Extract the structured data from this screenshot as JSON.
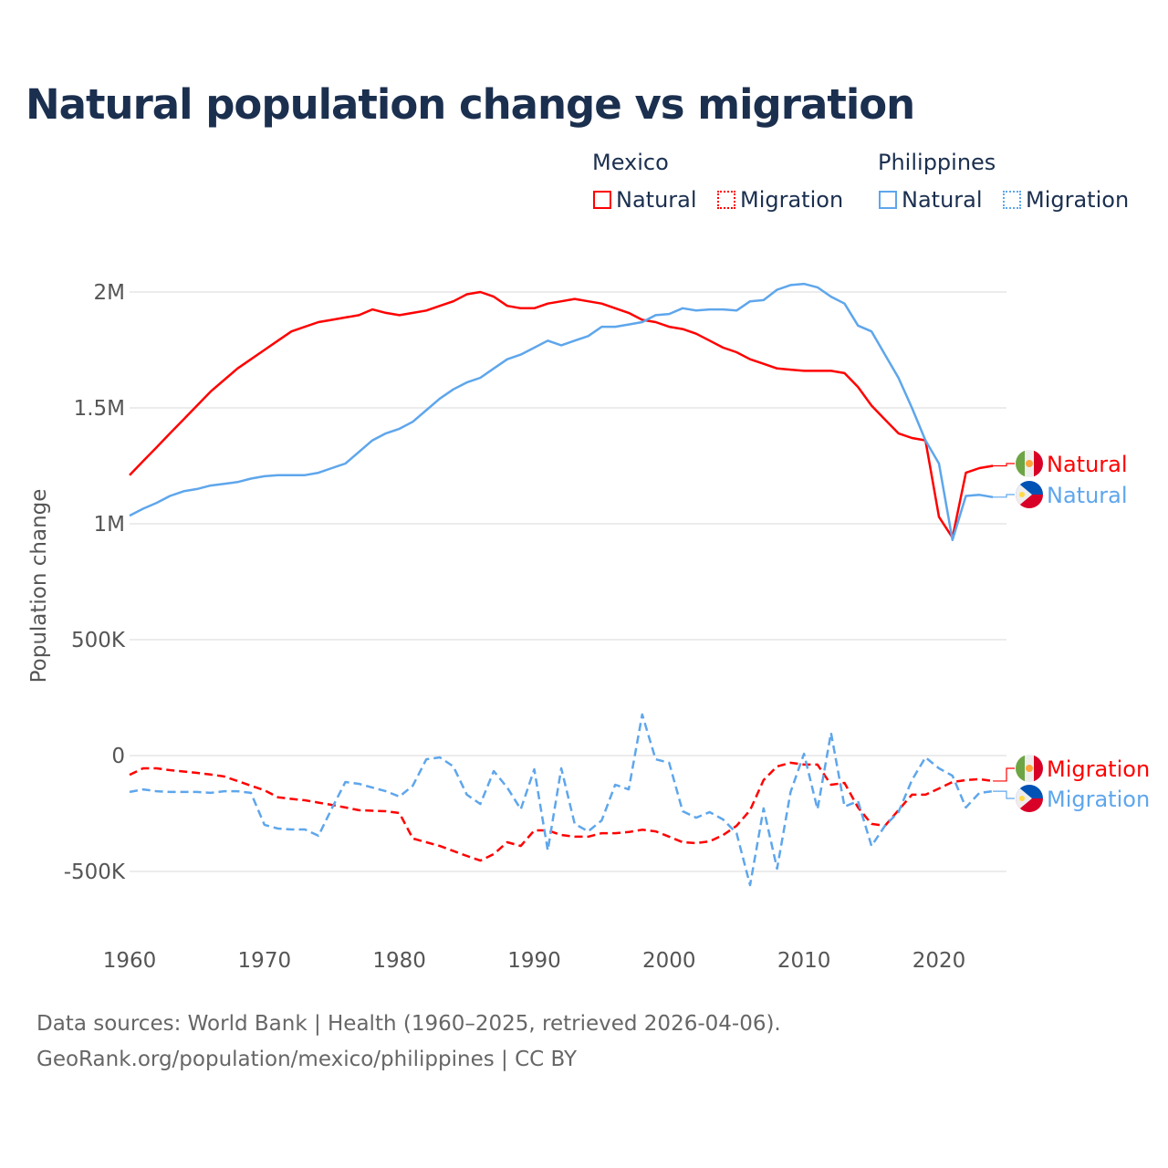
{
  "chart_data": {
    "type": "line",
    "title": "Natural population change vs migration",
    "ylabel": "Population change",
    "xlabel": "",
    "xlim": [
      1960,
      2025
    ],
    "ylim": [
      -650000,
      2100000
    ],
    "x_ticks": [
      1960,
      1970,
      1980,
      1990,
      2000,
      2010,
      2020
    ],
    "x_tick_labels": [
      "1960",
      "1970",
      "1980",
      "1990",
      "2000",
      "2010",
      "2020"
    ],
    "y_ticks": [
      -500000,
      0,
      500000,
      1000000,
      1500000,
      2000000
    ],
    "y_tick_labels": [
      "-500K",
      "0",
      "500K",
      "1M",
      "1.5M",
      "2M"
    ],
    "grid": true,
    "legend": {
      "placement": "top-right",
      "groups": [
        {
          "name": "Mexico",
          "items": [
            "Natural",
            "Migration"
          ]
        },
        {
          "name": "Philippines",
          "items": [
            "Natural",
            "Migration"
          ]
        }
      ]
    },
    "x": [
      1960,
      1961,
      1962,
      1963,
      1964,
      1965,
      1966,
      1967,
      1968,
      1969,
      1970,
      1971,
      1972,
      1973,
      1974,
      1975,
      1976,
      1977,
      1978,
      1979,
      1980,
      1981,
      1982,
      1983,
      1984,
      1985,
      1986,
      1987,
      1988,
      1989,
      1990,
      1991,
      1992,
      1993,
      1994,
      1995,
      1996,
      1997,
      1998,
      1999,
      2000,
      2001,
      2002,
      2003,
      2004,
      2005,
      2006,
      2007,
      2008,
      2009,
      2010,
      2011,
      2012,
      2013,
      2014,
      2015,
      2016,
      2017,
      2018,
      2019,
      2020,
      2021,
      2022,
      2023,
      2024
    ],
    "series": [
      {
        "name": "Mexico Natural",
        "country": "Mexico",
        "kind": "Natural",
        "label": "Natural",
        "color": "#ff0000",
        "dash": false,
        "values": [
          1210000,
          1270000,
          1330000,
          1390000,
          1450000,
          1510000,
          1570000,
          1620000,
          1670000,
          1710000,
          1750000,
          1790000,
          1830000,
          1850000,
          1870000,
          1880000,
          1890000,
          1900000,
          1925000,
          1910000,
          1900000,
          1910000,
          1920000,
          1940000,
          1960000,
          1990000,
          2000000,
          1980000,
          1940000,
          1930000,
          1930000,
          1950000,
          1960000,
          1970000,
          1960000,
          1950000,
          1930000,
          1910000,
          1880000,
          1870000,
          1850000,
          1840000,
          1820000,
          1790000,
          1760000,
          1740000,
          1710000,
          1690000,
          1670000,
          1665000,
          1660000,
          1660000,
          1660000,
          1650000,
          1590000,
          1510000,
          1450000,
          1390000,
          1370000,
          1360000,
          1030000,
          940000,
          1220000,
          1240000,
          1250000
        ]
      },
      {
        "name": "Philippines Natural",
        "country": "Philippines",
        "kind": "Natural",
        "label": "Natural",
        "color": "#5ea6ec",
        "dash": false,
        "values": [
          1035000,
          1065000,
          1090000,
          1120000,
          1140000,
          1150000,
          1165000,
          1172000,
          1180000,
          1195000,
          1205000,
          1210000,
          1210000,
          1210000,
          1220000,
          1240000,
          1260000,
          1310000,
          1360000,
          1390000,
          1410000,
          1440000,
          1490000,
          1540000,
          1580000,
          1610000,
          1630000,
          1670000,
          1710000,
          1730000,
          1760000,
          1790000,
          1770000,
          1790000,
          1810000,
          1850000,
          1850000,
          1860000,
          1870000,
          1900000,
          1905000,
          1930000,
          1920000,
          1925000,
          1925000,
          1920000,
          1960000,
          1965000,
          2010000,
          2030000,
          2035000,
          2020000,
          1980000,
          1950000,
          1855000,
          1830000,
          1730000,
          1630000,
          1500000,
          1360000,
          1260000,
          930000,
          1120000,
          1125000,
          1115000
        ]
      },
      {
        "name": "Mexico Migration",
        "country": "Mexico",
        "kind": "Migration",
        "label": "Migration",
        "color": "#ff0000",
        "dash": true,
        "values": [
          -83000,
          -55000,
          -55000,
          -63000,
          -69000,
          -75000,
          -82000,
          -90000,
          -110000,
          -130000,
          -150000,
          -180000,
          -187000,
          -193000,
          -203000,
          -213000,
          -224000,
          -236000,
          -238000,
          -240000,
          -248000,
          -358000,
          -374000,
          -390000,
          -412000,
          -433000,
          -453000,
          -425000,
          -374000,
          -390000,
          -323000,
          -323000,
          -343000,
          -350000,
          -350000,
          -335000,
          -335000,
          -330000,
          -320000,
          -327000,
          -350000,
          -374000,
          -378000,
          -370000,
          -343000,
          -303000,
          -236000,
          -106000,
          -47000,
          -31000,
          -39000,
          -39000,
          -126000,
          -118000,
          -224000,
          -295000,
          -303000,
          -236000,
          -169000,
          -169000,
          -142000,
          -114000,
          -106000,
          -102000,
          -110000
        ]
      },
      {
        "name": "Philippines Migration",
        "country": "Philippines",
        "kind": "Migration",
        "label": "Migration",
        "color": "#5ea6ec",
        "dash": true,
        "values": [
          -157000,
          -146000,
          -154000,
          -157000,
          -157000,
          -157000,
          -161000,
          -154000,
          -154000,
          -161000,
          -299000,
          -315000,
          -319000,
          -319000,
          -346000,
          -228000,
          -114000,
          -122000,
          -138000,
          -154000,
          -177000,
          -130000,
          -16000,
          -8000,
          -47000,
          -169000,
          -209000,
          -67000,
          -138000,
          -232000,
          -59000,
          -409000,
          -55000,
          -295000,
          -327000,
          -280000,
          -126000,
          -146000,
          177000,
          -16000,
          -31000,
          -240000,
          -268000,
          -244000,
          -276000,
          -335000,
          -559000,
          -228000,
          -488000,
          -157000,
          8000,
          -232000,
          98000,
          -220000,
          -197000,
          -390000,
          -303000,
          -244000,
          -106000,
          -8000,
          -55000,
          -87000,
          -224000,
          -161000,
          -154000
        ]
      }
    ]
  },
  "footer": {
    "line1": "Data sources: World Bank | Health (1960–2025, retrieved 2026-04-06).",
    "line2": "GeoRank.org/population/mexico/philippines | CC BY"
  },
  "flags": {
    "mexico": "mexico-flag-icon",
    "philippines": "philippines-flag-icon"
  }
}
